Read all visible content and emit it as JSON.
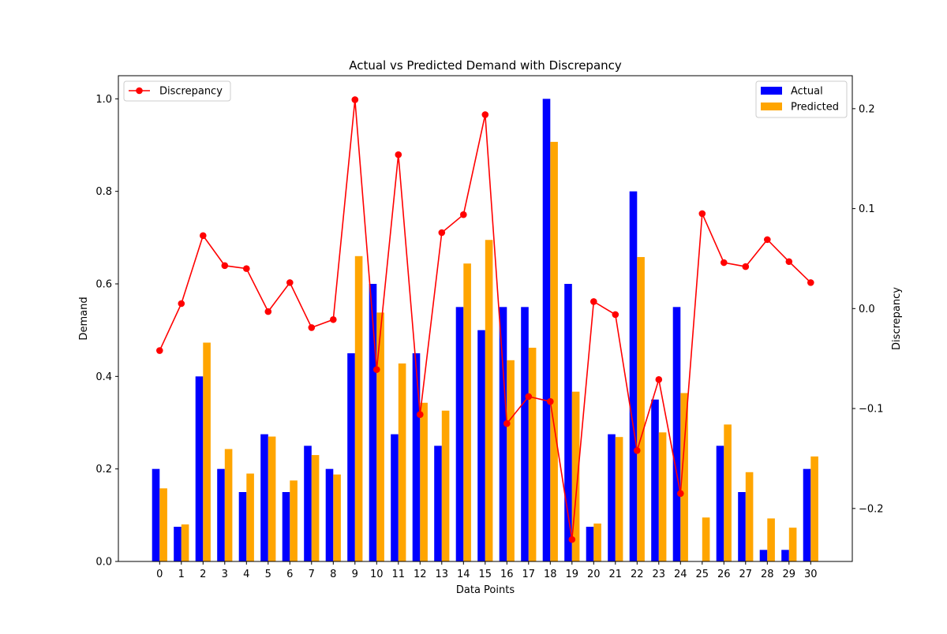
{
  "chart_data": {
    "type": "bar",
    "title": "Actual vs Predicted Demand with Discrepancy",
    "xlabel": "Data Points",
    "ylabel": "Demand",
    "y2label": "Discrepancy",
    "categories": [
      "0",
      "1",
      "2",
      "3",
      "4",
      "5",
      "6",
      "7",
      "8",
      "9",
      "10",
      "11",
      "12",
      "13",
      "14",
      "15",
      "16",
      "17",
      "18",
      "19",
      "20",
      "21",
      "22",
      "23",
      "24",
      "25",
      "26",
      "27",
      "28",
      "29",
      "30"
    ],
    "ylim": [
      0,
      1.05
    ],
    "y2lim": [
      -0.253,
      0.233
    ],
    "yticks": [
      "0.0",
      "0.2",
      "0.4",
      "0.6",
      "0.8",
      "1.0"
    ],
    "y2ticks": [
      "−0.2",
      "−0.1",
      "0.0",
      "0.1",
      "0.2"
    ],
    "grid": false,
    "series": [
      {
        "name": "Actual",
        "kind": "bar",
        "axis": "left",
        "color": "#0000ff",
        "values": [
          0.2,
          0.075,
          0.4,
          0.2,
          0.15,
          0.275,
          0.15,
          0.25,
          0.2,
          0.45,
          0.6,
          0.275,
          0.45,
          0.25,
          0.55,
          0.5,
          0.55,
          0.55,
          1.0,
          0.6,
          0.075,
          0.275,
          0.8,
          0.35,
          0.55,
          0.0,
          0.25,
          0.15,
          0.025,
          0.025,
          0.2
        ]
      },
      {
        "name": "Predicted",
        "kind": "bar",
        "axis": "left",
        "color": "#ffa500",
        "values": [
          0.158,
          0.08,
          0.473,
          0.243,
          0.19,
          0.27,
          0.175,
          0.23,
          0.188,
          0.66,
          0.538,
          0.428,
          0.343,
          0.326,
          0.644,
          0.695,
          0.435,
          0.462,
          0.907,
          0.367,
          0.082,
          0.269,
          0.658,
          0.279,
          0.364,
          0.095,
          0.296,
          0.193,
          0.093,
          0.073,
          0.227
        ]
      },
      {
        "name": "Discrepancy",
        "kind": "line",
        "axis": "right",
        "color": "#ff0000",
        "values": [
          -0.042,
          0.005,
          0.073,
          0.043,
          0.04,
          -0.003,
          0.026,
          -0.019,
          -0.011,
          0.209,
          -0.061,
          0.154,
          -0.106,
          0.076,
          0.094,
          0.194,
          -0.115,
          -0.088,
          -0.093,
          -0.231,
          0.007,
          -0.006,
          -0.142,
          -0.071,
          -0.185,
          0.095,
          0.046,
          0.042,
          0.069,
          0.047,
          0.026
        ]
      }
    ],
    "legends": [
      {
        "placement": "upper-left",
        "entries": [
          "Discrepancy"
        ]
      },
      {
        "placement": "upper-right",
        "entries": [
          "Actual",
          "Predicted"
        ]
      }
    ]
  }
}
